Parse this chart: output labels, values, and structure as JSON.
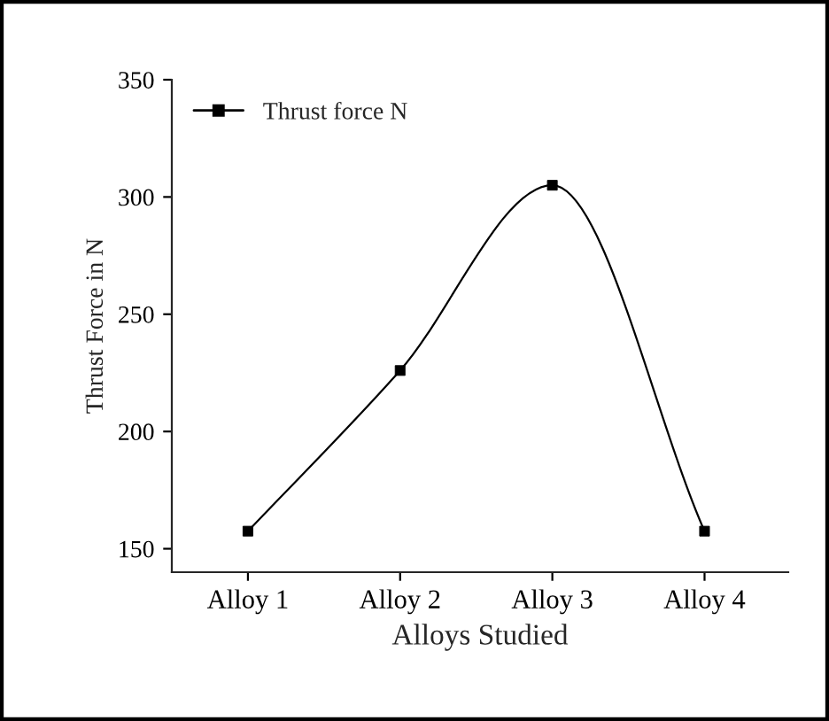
{
  "chart_data": {
    "type": "line",
    "xlabel": "Alloys Studied",
    "ylabel": "Thrust Force in N",
    "categories": [
      "Alloy 1",
      "Alloy 2",
      "Alloy 3",
      "Alloy 4"
    ],
    "series": [
      {
        "name": "Thrust force N",
        "color": "#000000",
        "values": [
          157.5,
          226,
          305,
          157.5
        ]
      }
    ],
    "ylim": [
      140,
      350
    ],
    "yticks": [
      150,
      200,
      250,
      300,
      350
    ],
    "grid": false,
    "legend": "top left",
    "marker": "square",
    "line_style": "solid"
  }
}
